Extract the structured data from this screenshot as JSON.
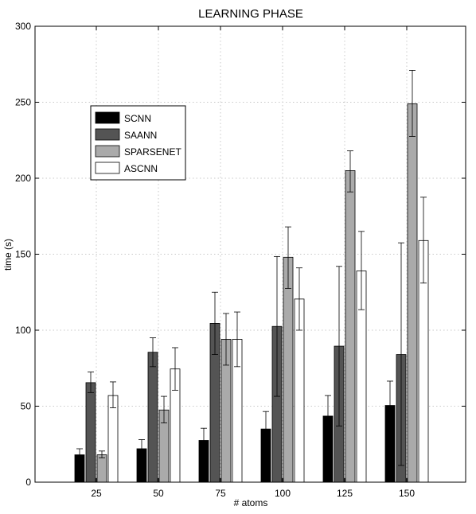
{
  "chart_data": {
    "type": "bar",
    "title": "LEARNING PHASE",
    "xlabel": "# atoms",
    "ylabel": "time (s)",
    "ylim": [
      0,
      300
    ],
    "yticks": [
      0,
      50,
      100,
      150,
      200,
      250,
      300
    ],
    "grid": true,
    "legend_position": "upper-left",
    "categories": [
      "25",
      "50",
      "75",
      "100",
      "125",
      "150"
    ],
    "series": [
      {
        "name": "SCNN",
        "color": "#000000",
        "values": [
          18,
          22,
          27.5,
          35,
          43.5,
          50.5
        ],
        "err_low": [
          14,
          17,
          20,
          24,
          30,
          35
        ],
        "err_high": [
          22,
          28,
          35.5,
          46.5,
          57,
          66.5
        ]
      },
      {
        "name": "SAANN",
        "color": "#545454",
        "values": [
          65.5,
          85.5,
          104.5,
          102.5,
          89.5,
          84
        ],
        "err_low": [
          59,
          76,
          84,
          56.5,
          37,
          11
        ],
        "err_high": [
          72.5,
          95,
          125,
          148.5,
          142,
          157.5
        ]
      },
      {
        "name": "SPARSENET",
        "color": "#aaaaaa",
        "values": [
          18,
          47.5,
          94,
          148,
          205,
          249
        ],
        "err_low": [
          16,
          39,
          77,
          127.5,
          191,
          227.5
        ],
        "err_high": [
          20.5,
          56.5,
          111,
          168,
          218,
          271
        ]
      },
      {
        "name": "ASCNN",
        "color": "#ffffff",
        "values": [
          57,
          74.5,
          94,
          120.5,
          139,
          159
        ],
        "err_low": [
          49,
          60.5,
          76,
          100,
          113.5,
          131
        ],
        "err_high": [
          66,
          88.5,
          112,
          141,
          165,
          187.5
        ]
      }
    ]
  }
}
